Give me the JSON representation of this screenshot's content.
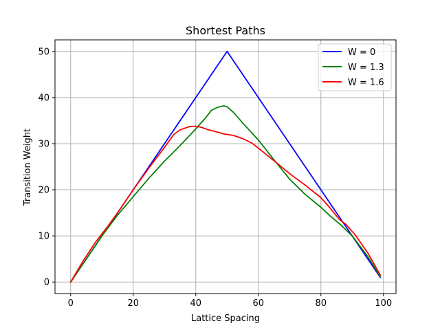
{
  "chart_data": {
    "type": "line",
    "title": "Shortest Paths",
    "xlabel": "Lattice Spacing",
    "ylabel": "Transition Weight",
    "xlim": [
      -5,
      104
    ],
    "ylim": [
      -2.5,
      52.5
    ],
    "xticks": [
      0,
      20,
      40,
      60,
      80,
      100
    ],
    "yticks": [
      0,
      10,
      20,
      30,
      40,
      50
    ],
    "xtick_labels": [
      "0",
      "20",
      "40",
      "60",
      "80",
      "100"
    ],
    "ytick_labels": [
      "0",
      "10",
      "20",
      "30",
      "40",
      "50"
    ],
    "grid": true,
    "legend_position": "top-right",
    "series": [
      {
        "name": "W = 0",
        "color": "#0000ff",
        "points": [
          [
            0,
            0
          ],
          [
            50,
            50
          ],
          [
            99,
            1
          ]
        ]
      },
      {
        "name": "W = 1.3",
        "color": "#008000",
        "points": [
          [
            0,
            0
          ],
          [
            5,
            5
          ],
          [
            10,
            10
          ],
          [
            15,
            14.5
          ],
          [
            20,
            18.5
          ],
          [
            25,
            22.5
          ],
          [
            30,
            26.2
          ],
          [
            35,
            29.6
          ],
          [
            40,
            33.2
          ],
          [
            43,
            35.5
          ],
          [
            45,
            37.2
          ],
          [
            47,
            37.9
          ],
          [
            49,
            38.2
          ],
          [
            50,
            38
          ],
          [
            52,
            36.8
          ],
          [
            55,
            34.5
          ],
          [
            60,
            30.8
          ],
          [
            65,
            26.5
          ],
          [
            70,
            22.3
          ],
          [
            75,
            19
          ],
          [
            80,
            16.2
          ],
          [
            83,
            14.3
          ],
          [
            86,
            12.6
          ],
          [
            90,
            10
          ],
          [
            95,
            5.5
          ],
          [
            99,
            1.2
          ]
        ]
      },
      {
        "name": "W = 1.6",
        "color": "#ff0000",
        "points": [
          [
            0,
            0
          ],
          [
            4,
            4.6
          ],
          [
            8,
            8.7
          ],
          [
            12,
            12.2
          ],
          [
            16,
            16
          ],
          [
            20,
            20
          ],
          [
            25,
            24.7
          ],
          [
            30,
            29.2
          ],
          [
            33,
            32
          ],
          [
            35,
            33
          ],
          [
            38,
            33.7
          ],
          [
            40,
            33.8
          ],
          [
            42,
            33.5
          ],
          [
            44,
            33
          ],
          [
            47,
            32.5
          ],
          [
            49,
            32.1
          ],
          [
            52,
            31.8
          ],
          [
            55,
            31.1
          ],
          [
            58,
            30.1
          ],
          [
            61,
            28.5
          ],
          [
            65,
            26.3
          ],
          [
            70,
            23.5
          ],
          [
            75,
            21
          ],
          [
            80,
            18.3
          ],
          [
            83,
            16
          ],
          [
            86,
            13.5
          ],
          [
            88,
            12.5
          ],
          [
            91,
            10.2
          ],
          [
            95,
            6.3
          ],
          [
            99,
            1.5
          ]
        ]
      }
    ]
  }
}
